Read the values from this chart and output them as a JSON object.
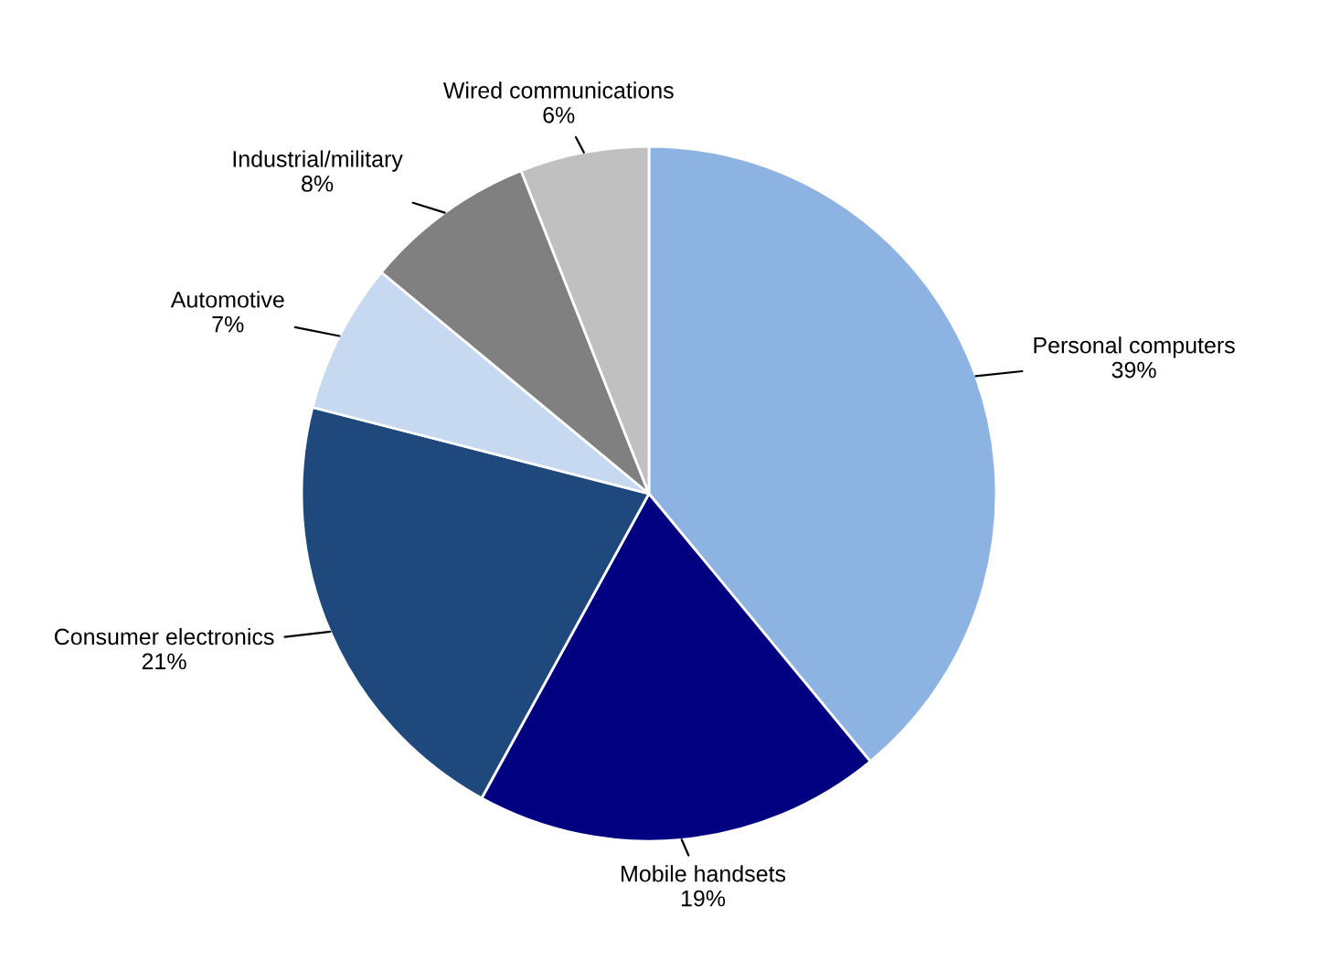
{
  "chart_data": {
    "type": "pie",
    "categories": [
      "Personal computers",
      "Mobile handsets",
      "Consumer electronics",
      "Automotive",
      "Industrial/military",
      "Wired communications"
    ],
    "values": [
      39,
      19,
      21,
      7,
      8,
      6
    ],
    "colors": [
      "#8db3e2",
      "#000080",
      "#1f497d",
      "#c6d9f1",
      "#808080",
      "#c0c0c0"
    ],
    "value_labels": [
      "39%",
      "19%",
      "21%",
      "7%",
      "8%",
      "6%"
    ],
    "legend": false
  }
}
